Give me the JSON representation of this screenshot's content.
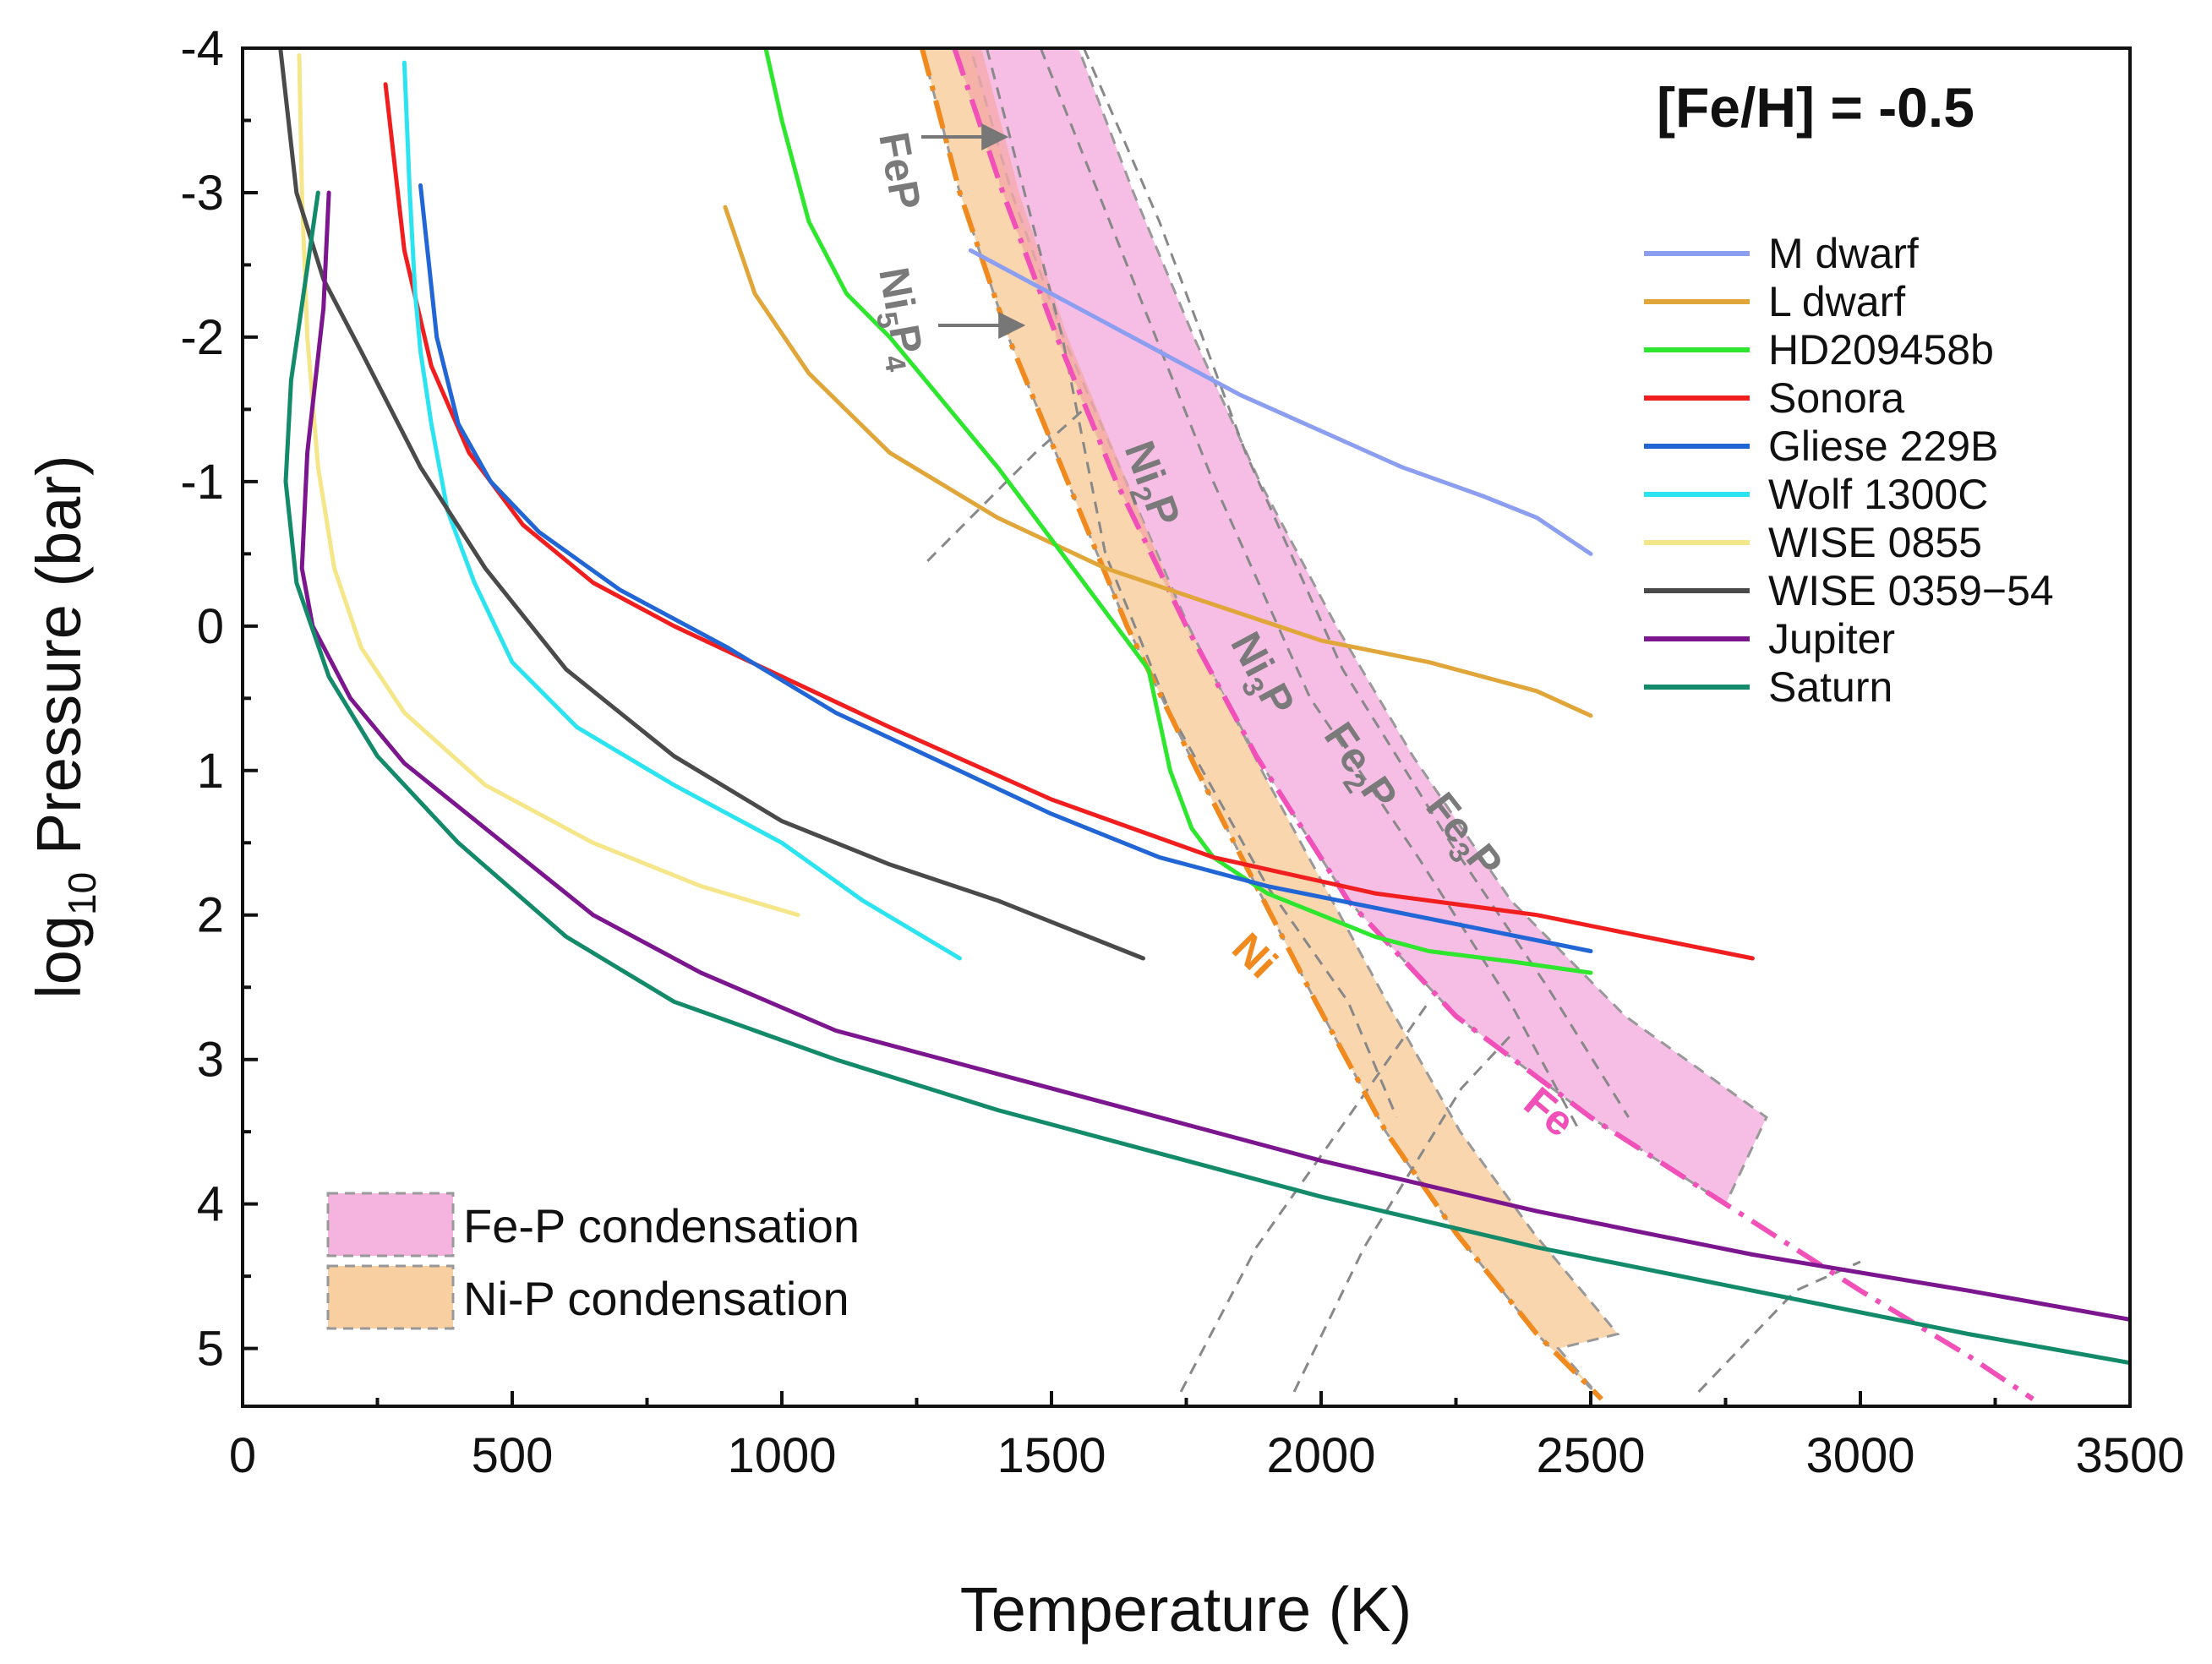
{
  "chart_data": {
    "type": "line",
    "title": "",
    "annotation": "[Fe/H] = -0.5",
    "xlabel": "Temperature (K)",
    "ylabel_prefix": "log",
    "ylabel_sub": "10",
    "ylabel_suffix": " Pressure (bar)",
    "xlim": [
      0,
      3500
    ],
    "ylim": [
      -4,
      5.4
    ],
    "y_inverted": true,
    "x_ticks": [
      "0",
      "500",
      "1000",
      "1500",
      "2000",
      "2500",
      "3000",
      "3500"
    ],
    "y_ticks": [
      "-4",
      "-3",
      "-2",
      "-1",
      "0",
      "1",
      "2",
      "3",
      "4",
      "5"
    ],
    "grid": false,
    "legend_position": "top-right",
    "series": [
      {
        "name": "M dwarf",
        "color": "#8c9ef0",
        "points": [
          [
            1350,
            -2.6
          ],
          [
            1450,
            -2.4
          ],
          [
            1550,
            -2.2
          ],
          [
            1700,
            -1.9
          ],
          [
            1850,
            -1.6
          ],
          [
            2000,
            -1.35
          ],
          [
            2150,
            -1.1
          ],
          [
            2300,
            -0.9
          ],
          [
            2400,
            -0.75
          ],
          [
            2500,
            -0.5
          ]
        ]
      },
      {
        "name": "L dwarf",
        "color": "#e0a63a",
        "points": [
          [
            895,
            -2.9
          ],
          [
            950,
            -2.3
          ],
          [
            1050,
            -1.75
          ],
          [
            1200,
            -1.2
          ],
          [
            1400,
            -0.75
          ],
          [
            1600,
            -0.4
          ],
          [
            1800,
            -0.15
          ],
          [
            2000,
            0.1
          ],
          [
            2200,
            0.25
          ],
          [
            2400,
            0.45
          ],
          [
            2500,
            0.62
          ]
        ]
      },
      {
        "name": "HD209458b",
        "color": "#2ee62e",
        "points": [
          [
            970,
            -4.0
          ],
          [
            1000,
            -3.5
          ],
          [
            1050,
            -2.8
          ],
          [
            1120,
            -2.3
          ],
          [
            1200,
            -2.0
          ],
          [
            1300,
            -1.55
          ],
          [
            1400,
            -1.1
          ],
          [
            1500,
            -0.6
          ],
          [
            1600,
            -0.1
          ],
          [
            1680,
            0.3
          ],
          [
            1720,
            1.0
          ],
          [
            1760,
            1.4
          ],
          [
            1800,
            1.6
          ],
          [
            1900,
            1.85
          ],
          [
            2000,
            2.0
          ],
          [
            2100,
            2.15
          ],
          [
            2200,
            2.25
          ],
          [
            2350,
            2.32
          ],
          [
            2500,
            2.4
          ]
        ]
      },
      {
        "name": "Sonora",
        "color": "#f01e1e",
        "points": [
          [
            265,
            -3.75
          ],
          [
            300,
            -2.6
          ],
          [
            350,
            -1.8
          ],
          [
            420,
            -1.2
          ],
          [
            520,
            -0.7
          ],
          [
            650,
            -0.3
          ],
          [
            800,
            0.0
          ],
          [
            1000,
            0.35
          ],
          [
            1200,
            0.7
          ],
          [
            1500,
            1.2
          ],
          [
            1800,
            1.6
          ],
          [
            2100,
            1.85
          ],
          [
            2400,
            2.0
          ],
          [
            2600,
            2.15
          ],
          [
            2800,
            2.3
          ]
        ]
      },
      {
        "name": "Gliese 229B",
        "color": "#2266d6",
        "points": [
          [
            330,
            -3.05
          ],
          [
            360,
            -2.0
          ],
          [
            400,
            -1.4
          ],
          [
            460,
            -1.0
          ],
          [
            550,
            -0.65
          ],
          [
            700,
            -0.25
          ],
          [
            900,
            0.15
          ],
          [
            1100,
            0.6
          ],
          [
            1300,
            0.95
          ],
          [
            1500,
            1.3
          ],
          [
            1700,
            1.6
          ],
          [
            1900,
            1.8
          ],
          [
            2100,
            1.95
          ],
          [
            2300,
            2.1
          ],
          [
            2500,
            2.25
          ]
        ]
      },
      {
        "name": "Wolf 1300C",
        "color": "#2ce3f0",
        "points": [
          [
            300,
            -3.9
          ],
          [
            310,
            -3.0
          ],
          [
            320,
            -2.3
          ],
          [
            330,
            -1.9
          ],
          [
            350,
            -1.4
          ],
          [
            380,
            -0.8
          ],
          [
            430,
            -0.3
          ],
          [
            500,
            0.25
          ],
          [
            620,
            0.7
          ],
          [
            800,
            1.1
          ],
          [
            1000,
            1.5
          ],
          [
            1150,
            1.9
          ],
          [
            1330,
            2.3
          ]
        ]
      },
      {
        "name": "WISE 0855",
        "color": "#f5e68a",
        "points": [
          [
            105,
            -3.95
          ],
          [
            110,
            -3.0
          ],
          [
            120,
            -2.0
          ],
          [
            140,
            -1.1
          ],
          [
            170,
            -0.4
          ],
          [
            220,
            0.15
          ],
          [
            300,
            0.6
          ],
          [
            450,
            1.1
          ],
          [
            650,
            1.5
          ],
          [
            850,
            1.8
          ],
          [
            1030,
            2.0
          ]
        ]
      },
      {
        "name": "WISE 0359−54",
        "color": "#4a4a4a",
        "points": [
          [
            70,
            -4.0
          ],
          [
            100,
            -3.0
          ],
          [
            150,
            -2.4
          ],
          [
            220,
            -1.9
          ],
          [
            330,
            -1.1
          ],
          [
            450,
            -0.4
          ],
          [
            600,
            0.3
          ],
          [
            800,
            0.9
          ],
          [
            1000,
            1.35
          ],
          [
            1200,
            1.65
          ],
          [
            1400,
            1.9
          ],
          [
            1670,
            2.3
          ]
        ]
      },
      {
        "name": "Jupiter",
        "color": "#7b168f",
        "points": [
          [
            160,
            -3.0
          ],
          [
            150,
            -2.2
          ],
          [
            120,
            -1.2
          ],
          [
            110,
            -0.4
          ],
          [
            130,
            0.0
          ],
          [
            200,
            0.5
          ],
          [
            300,
            0.95
          ],
          [
            450,
            1.4
          ],
          [
            650,
            2.0
          ],
          [
            850,
            2.4
          ],
          [
            1100,
            2.8
          ],
          [
            1400,
            3.1
          ],
          [
            1700,
            3.4
          ],
          [
            2000,
            3.7
          ],
          [
            2400,
            4.05
          ],
          [
            2800,
            4.35
          ],
          [
            3200,
            4.6
          ],
          [
            3500,
            4.8
          ]
        ]
      },
      {
        "name": "Saturn",
        "color": "#138a6a",
        "points": [
          [
            140,
            -3.0
          ],
          [
            90,
            -1.7
          ],
          [
            80,
            -1.0
          ],
          [
            100,
            -0.3
          ],
          [
            160,
            0.35
          ],
          [
            250,
            0.9
          ],
          [
            400,
            1.5
          ],
          [
            600,
            2.15
          ],
          [
            800,
            2.6
          ],
          [
            1100,
            3.0
          ],
          [
            1400,
            3.35
          ],
          [
            1700,
            3.65
          ],
          [
            2000,
            3.95
          ],
          [
            2400,
            4.3
          ],
          [
            2800,
            4.6
          ],
          [
            3200,
            4.9
          ],
          [
            3500,
            5.1
          ]
        ]
      }
    ],
    "condensation_curves": [
      {
        "label": "Ni",
        "color": "#f08a1e",
        "style": "dash-dot",
        "points": [
          [
            1260,
            -4.0
          ],
          [
            1330,
            -3.0
          ],
          [
            1420,
            -2.0
          ],
          [
            1530,
            -1.0
          ],
          [
            1640,
            0.0
          ],
          [
            1770,
            1.0
          ],
          [
            1880,
            1.8
          ],
          [
            1990,
            2.6
          ],
          [
            2120,
            3.5
          ],
          [
            2250,
            4.2
          ],
          [
            2400,
            4.9
          ],
          [
            2520,
            5.35
          ]
        ]
      },
      {
        "label": "Fe",
        "color": "#f050b8",
        "style": "dash-dot",
        "points": [
          [
            1320,
            -4.0
          ],
          [
            1410,
            -3.0
          ],
          [
            1510,
            -2.0
          ],
          [
            1620,
            -1.0
          ],
          [
            1750,
            0.0
          ],
          [
            1880,
            0.9
          ],
          [
            2050,
            1.9
          ],
          [
            2250,
            2.7
          ],
          [
            2500,
            3.4
          ],
          [
            2750,
            4.0
          ],
          [
            3000,
            4.6
          ],
          [
            3200,
            5.05
          ],
          [
            3320,
            5.35
          ]
        ]
      }
    ],
    "phase_labels": [
      "FeP",
      "Ni",
      "5",
      "P",
      "4",
      "Ni",
      "2",
      "P",
      "Ni",
      "3",
      "P",
      "Fe",
      "2",
      "P",
      "Fe",
      "3",
      "P"
    ],
    "regions": [
      {
        "label": "Fe-P condensation",
        "color": "#f5b3e0"
      },
      {
        "label": "Ni-P condensation",
        "color": "#f8cfa0"
      }
    ]
  }
}
